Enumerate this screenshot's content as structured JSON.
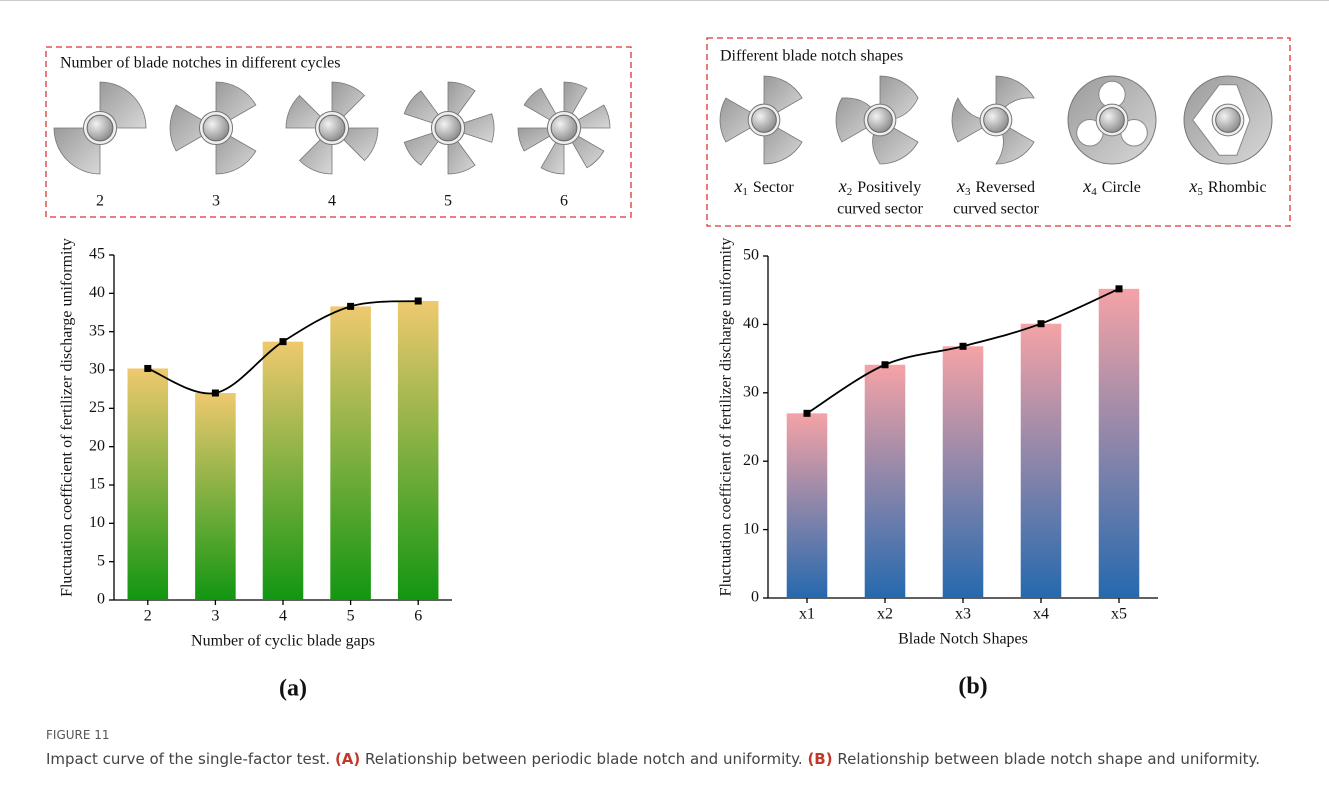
{
  "chart_data": [
    {
      "type": "bar",
      "panel_label": "(a)",
      "x_label": "Number of cyclic blade gaps",
      "y_label": "Fluctuation coefficient of fertilizer discharge uniformity",
      "categories": [
        "2",
        "3",
        "4",
        "5",
        "6"
      ],
      "values": [
        30.2,
        27.0,
        33.7,
        38.3,
        39.0
      ],
      "colors": [
        "#efc96f",
        "#129612"
      ],
      "smooth_line": true,
      "line_color": "#000000",
      "ylim": [
        0,
        45
      ],
      "yticks": [
        0,
        5,
        10,
        15,
        20,
        25,
        30,
        35,
        40,
        45
      ]
    },
    {
      "type": "bar",
      "panel_label": "(b)",
      "x_label": "Blade Notch Shapes",
      "y_label": "Fluctuation coefficient of fertilizer discharge uniformity",
      "categories": [
        "x1",
        "x2",
        "x3",
        "x4",
        "x5"
      ],
      "values": [
        27.0,
        34.1,
        36.8,
        40.1,
        45.2
      ],
      "colors": [
        "#f5a3a6",
        "#2569ae"
      ],
      "smooth_line": true,
      "line_color": "#000000",
      "ylim": [
        0,
        50
      ],
      "yticks": [
        0,
        10,
        20,
        30,
        40,
        50
      ]
    }
  ],
  "illustrations": [
    {
      "title": "Number of blade notches in different cycles",
      "items": [
        {
          "label": "2"
        },
        {
          "label": "3"
        },
        {
          "label": "4"
        },
        {
          "label": "5"
        },
        {
          "label": "6"
        }
      ]
    },
    {
      "title": "Different blade notch shapes",
      "items": [
        {
          "symbol": "x",
          "sub": "1",
          "name_lines": [
            "Sector"
          ]
        },
        {
          "symbol": "x",
          "sub": "2",
          "name_lines": [
            "Positively",
            "curved sector"
          ]
        },
        {
          "symbol": "x",
          "sub": "3",
          "name_lines": [
            "Reversed",
            "curved sector"
          ]
        },
        {
          "symbol": "x",
          "sub": "4",
          "name_lines": [
            "Circle"
          ]
        },
        {
          "symbol": "x",
          "sub": "5",
          "name_lines": [
            "Rhombic"
          ]
        }
      ]
    }
  ],
  "caption": {
    "label": "FIGURE 11",
    "segments": [
      "Impact curve of the single-factor test. ",
      "(A)",
      " Relationship between periodic blade notch and uniformity. ",
      "(B)",
      " Relationship between blade notch shape and uniformity."
    ]
  }
}
